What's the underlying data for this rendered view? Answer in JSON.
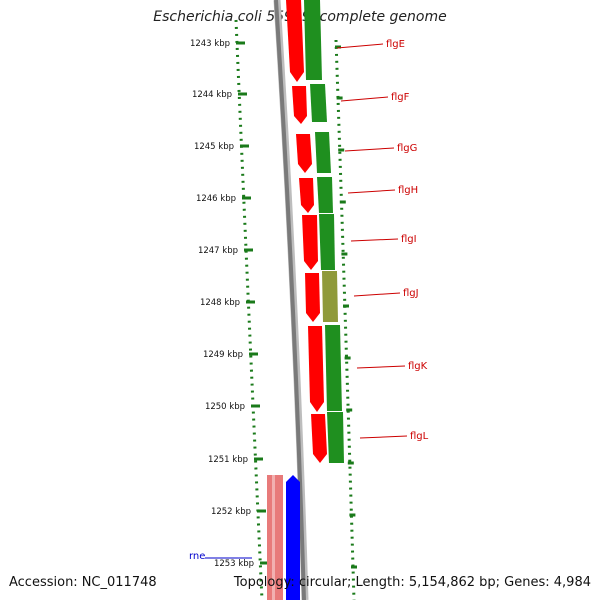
{
  "title": "Escherichia coli 55989, complete genome",
  "footer": {
    "accession_label": "Accession:",
    "accession_value": "NC_011748",
    "topology_text": "Topology: circular; Length: 5,154,862 bp; Genes: 4,984"
  },
  "colors": {
    "cds_red": "#ff0000",
    "cds_green": "#1f8f1f",
    "cds_olive": "#8f9a3a",
    "rna_pink": "#e87a7a",
    "rna_blue": "#0000ff",
    "label_red": "#cc0000",
    "label_blue": "#0000cc",
    "scale_green": "#1a7a1a",
    "backbone_gray": "#7a7a7a"
  },
  "scale_ticks": [
    "1243 kbp",
    "1244 kbp",
    "1245 kbp",
    "1246 kbp",
    "1247 kbp",
    "1248 kbp",
    "1249 kbp",
    "1250 kbp",
    "1251 kbp",
    "1252 kbp",
    "1253 kbp"
  ],
  "gene_labels": [
    {
      "name": "flgE",
      "color": "#cc0000"
    },
    {
      "name": "flgF",
      "color": "#cc0000"
    },
    {
      "name": "flgG",
      "color": "#cc0000"
    },
    {
      "name": "flgH",
      "color": "#cc0000"
    },
    {
      "name": "flgI",
      "color": "#cc0000"
    },
    {
      "name": "flgJ",
      "color": "#cc0000"
    },
    {
      "name": "flgK",
      "color": "#cc0000"
    },
    {
      "name": "flgL",
      "color": "#cc0000"
    },
    {
      "name": "rne",
      "color": "#0000cc"
    }
  ]
}
